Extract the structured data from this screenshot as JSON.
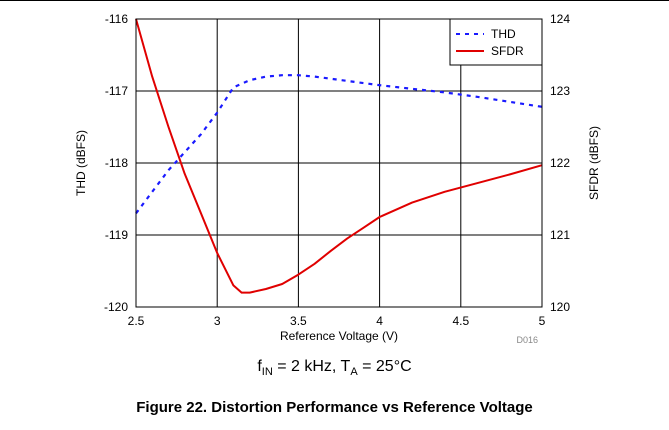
{
  "chart_data": {
    "type": "line",
    "xlabel": "Reference Voltage (V)",
    "ylabel_left": "THD (dBFS)",
    "ylabel_right": "SFDR (dBFS)",
    "xlim": [
      2.5,
      5
    ],
    "ylim_left": [
      -120,
      -116
    ],
    "ylim_right": [
      120,
      124
    ],
    "x_ticks": [
      "2.5",
      "3",
      "3.5",
      "4",
      "4.5",
      "5"
    ],
    "y_left_ticks": [
      "-116",
      "-117",
      "-118",
      "-119",
      "-120"
    ],
    "y_right_ticks": [
      "124",
      "123",
      "122",
      "121",
      "120"
    ],
    "grid": true,
    "legend_position": "top-right",
    "figure_id": "D016",
    "series": [
      {
        "name": "THD",
        "axis": "left",
        "color": "#1a1aff",
        "style": "dotted",
        "x": [
          2.5,
          2.6,
          2.7,
          2.8,
          2.9,
          3.0,
          3.1,
          3.2,
          3.3,
          3.4,
          3.5,
          3.6,
          3.8,
          4.0,
          4.2,
          4.4,
          4.6,
          4.8,
          5.0
        ],
        "y": [
          -118.7,
          -118.4,
          -118.1,
          -117.85,
          -117.6,
          -117.3,
          -116.95,
          -116.85,
          -116.8,
          -116.78,
          -116.78,
          -116.8,
          -116.86,
          -116.92,
          -116.97,
          -117.02,
          -117.08,
          -117.15,
          -117.22
        ]
      },
      {
        "name": "SFDR",
        "axis": "right",
        "color": "#e00000",
        "style": "solid",
        "x": [
          2.5,
          2.6,
          2.7,
          2.8,
          2.9,
          3.0,
          3.1,
          3.15,
          3.2,
          3.3,
          3.4,
          3.5,
          3.6,
          3.7,
          3.8,
          3.9,
          4.0,
          4.2,
          4.4,
          4.6,
          4.8,
          5.0
        ],
        "y": [
          124.0,
          123.2,
          122.5,
          121.85,
          121.3,
          120.75,
          120.3,
          120.2,
          120.2,
          120.25,
          120.32,
          120.45,
          120.6,
          120.78,
          120.95,
          121.1,
          121.25,
          121.45,
          121.6,
          121.72,
          121.84,
          121.97
        ]
      }
    ]
  },
  "condition": {
    "f_sym": "f",
    "f_sub": "IN",
    "f_val": " = 2 kHz, T",
    "t_sub": "A",
    "t_val": " = 25°C"
  },
  "caption": "Figure 22. Distortion Performance vs Reference Voltage"
}
